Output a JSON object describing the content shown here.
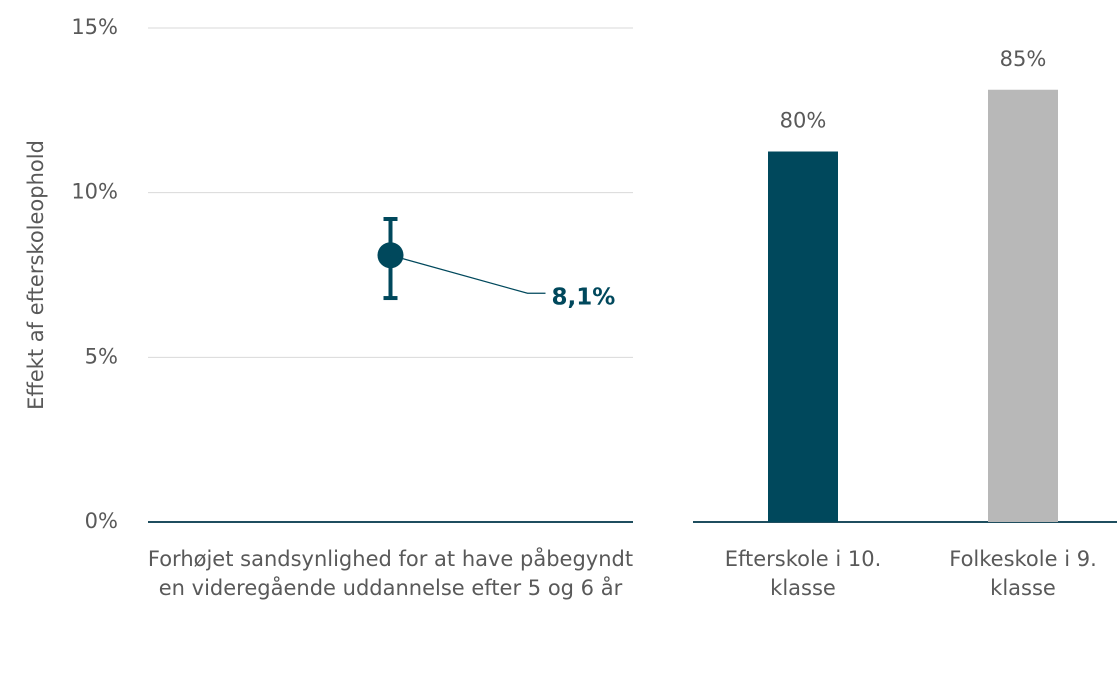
{
  "chart_data": [
    {
      "type": "errorbar",
      "ylabel": "Effekt af efterskoleophold",
      "categories": [
        "Forhøjet sandsynlighed for at have påbegyndt en videregående uddannelse efter 5 og 6 år"
      ],
      "values": [
        8.1
      ],
      "ci": [
        [
          6.8,
          9.2
        ]
      ],
      "value_labels": [
        "8,1%"
      ],
      "color": "#00485c",
      "ylim": [
        0,
        15
      ],
      "yticks": [
        {
          "value": 0,
          "label": "0%"
        },
        {
          "value": 5,
          "label": "5%"
        },
        {
          "value": 10,
          "label": "10%"
        },
        {
          "value": 15,
          "label": "15%"
        }
      ],
      "grid": true
    },
    {
      "type": "bar",
      "categories": [
        "Efterskole i 10. klasse",
        "Folkeskole i 9. klasse"
      ],
      "values": [
        80,
        85
      ],
      "value_labels": [
        "80%",
        "85%"
      ],
      "colors": [
        "#00485c",
        "#b8b8b8"
      ],
      "ylim": [
        50,
        90
      ]
    }
  ]
}
